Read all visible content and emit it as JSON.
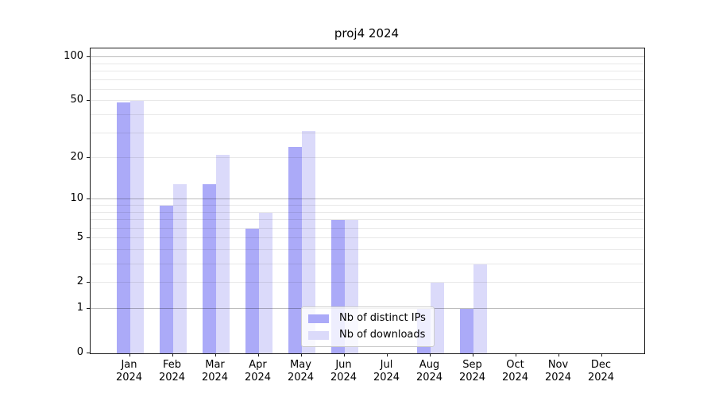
{
  "title": "proj4 2024",
  "chart_data": {
    "type": "bar",
    "title": "proj4 2024",
    "categories": [
      "Jan",
      "Feb",
      "Mar",
      "Apr",
      "May",
      "Jun",
      "Jul",
      "Aug",
      "Sep",
      "Oct",
      "Nov",
      "Dec"
    ],
    "x_year": "2024",
    "series": [
      {
        "name": "Nb of distinct IPs",
        "color": "#abaaf8",
        "values": [
          49,
          9,
          13,
          6,
          24,
          7,
          0,
          1,
          1,
          0,
          0,
          0
        ]
      },
      {
        "name": "Nb of downloads",
        "color": "#dbdafa",
        "values": [
          50,
          13,
          21,
          8,
          31,
          7,
          0,
          2,
          3,
          0,
          0,
          0
        ]
      }
    ],
    "yscale": "log1p",
    "ylim": [
      0,
      115
    ],
    "yticks": [
      100,
      50,
      20,
      10,
      5,
      2,
      1,
      0
    ],
    "grid_major": [
      1,
      10,
      100
    ],
    "grid_minor": [
      2,
      3,
      4,
      5,
      6,
      7,
      8,
      9,
      20,
      30,
      40,
      50,
      60,
      70,
      80,
      90
    ],
    "grid": "horizontal",
    "legend_position": "lower center",
    "background": "#ffffff"
  },
  "legend": {
    "items": [
      {
        "label": "Nb of distinct IPs",
        "color": "#abaaf8"
      },
      {
        "label": "Nb of downloads",
        "color": "#dbdafa"
      }
    ]
  }
}
